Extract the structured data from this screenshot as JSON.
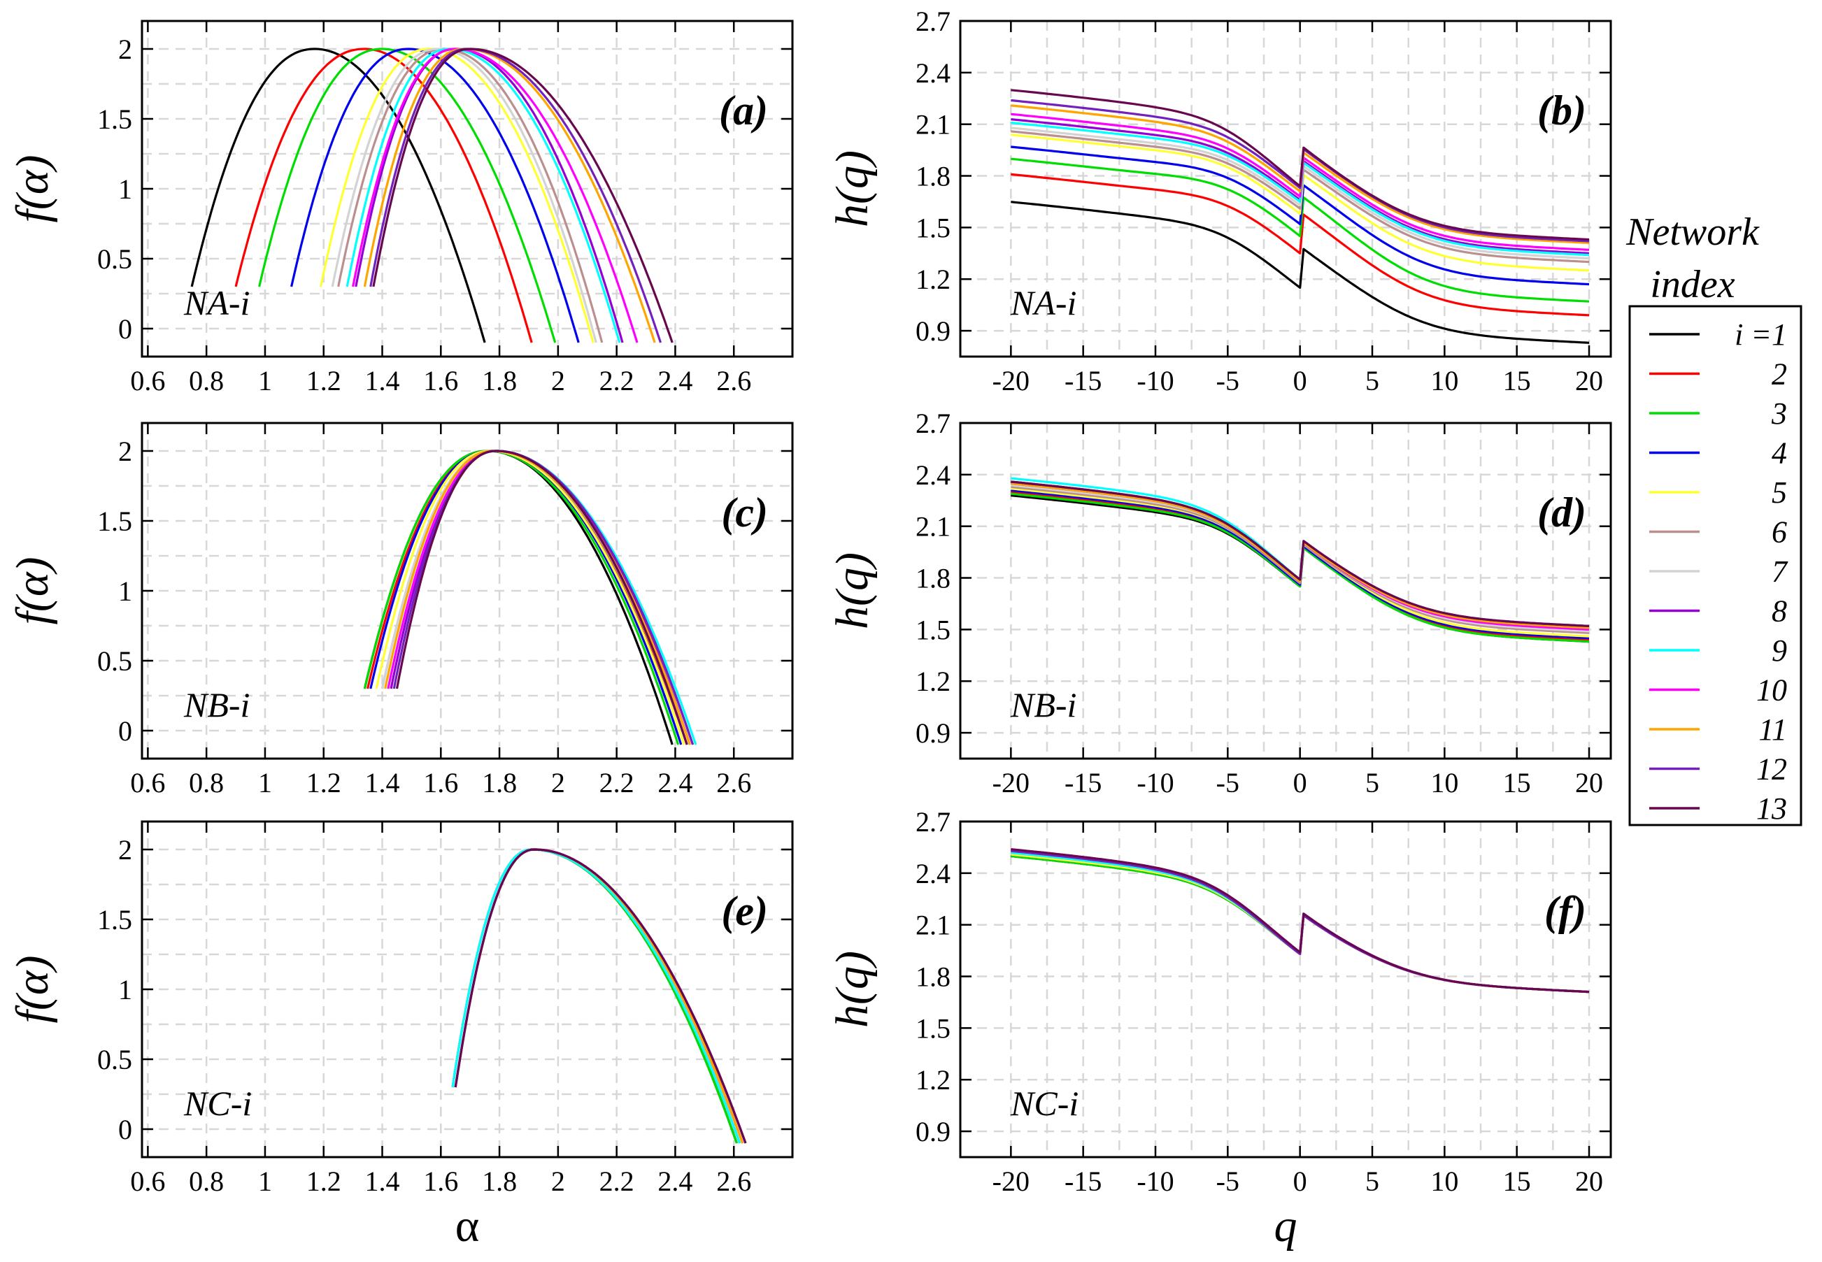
{
  "figure": {
    "legend": {
      "title_line1": "Network",
      "title_line2": "index",
      "first_label": "i =1"
    },
    "series_colors": [
      "#000000",
      "#ff0000",
      "#00dd00",
      "#0000ee",
      "#ffff33",
      "#bc8f8f",
      "#d3d3d3",
      "#9400d3",
      "#00ffff",
      "#ff00ff",
      "#ffa500",
      "#7221bc",
      "#67074e"
    ],
    "series_labels": [
      "i =1",
      "2",
      "3",
      "4",
      "5",
      "6",
      "7",
      "8",
      "9",
      "10",
      "11",
      "12",
      "13"
    ]
  },
  "chart_data": [
    {
      "id": "a",
      "type": "line",
      "panel_label": "(a)",
      "annotation": "NA-i",
      "xlabel": "",
      "ylabel": "f(α)",
      "xlim": [
        0.58,
        2.8
      ],
      "ylim": [
        -0.2,
        2.2
      ],
      "xticks": [
        "0.6",
        "0.8",
        "1",
        "1.2",
        "1.4",
        "1.6",
        "1.8",
        "2",
        "2.2",
        "2.4",
        "2.6"
      ],
      "yticks": [
        "0",
        "0.5",
        "1",
        "1.5",
        "2"
      ],
      "series": [
        {
          "name": "i =1",
          "values": {
            "amin": 0.75,
            "amax": 1.75,
            "apeak": 1.17
          }
        },
        {
          "name": "2",
          "values": {
            "amin": 0.9,
            "amax": 1.91,
            "apeak": 1.34
          }
        },
        {
          "name": "3",
          "values": {
            "amin": 0.98,
            "amax": 1.99,
            "apeak": 1.4
          }
        },
        {
          "name": "4",
          "values": {
            "amin": 1.09,
            "amax": 2.07,
            "apeak": 1.49
          }
        },
        {
          "name": "5",
          "values": {
            "amin": 1.19,
            "amax": 2.12,
            "apeak": 1.56
          }
        },
        {
          "name": "6",
          "values": {
            "amin": 1.25,
            "amax": 2.15,
            "apeak": 1.61
          }
        },
        {
          "name": "7",
          "values": {
            "amin": 1.23,
            "amax": 2.13,
            "apeak": 1.59
          }
        },
        {
          "name": "8",
          "values": {
            "amin": 1.31,
            "amax": 2.22,
            "apeak": 1.65
          }
        },
        {
          "name": "9",
          "values": {
            "amin": 1.28,
            "amax": 2.21,
            "apeak": 1.63
          }
        },
        {
          "name": "10",
          "values": {
            "amin": 1.3,
            "amax": 2.27,
            "apeak": 1.65
          }
        },
        {
          "name": "11",
          "values": {
            "amin": 1.34,
            "amax": 2.33,
            "apeak": 1.68
          }
        },
        {
          "name": "12",
          "values": {
            "amin": 1.36,
            "amax": 2.35,
            "apeak": 1.69
          }
        },
        {
          "name": "13",
          "values": {
            "amin": 1.37,
            "amax": 2.39,
            "apeak": 1.7
          }
        }
      ]
    },
    {
      "id": "b",
      "type": "line",
      "panel_label": "(b)",
      "annotation": "NA-i",
      "xlabel": "",
      "ylabel": "h(q)",
      "xlim": [
        -23.5,
        21.5
      ],
      "ylim": [
        0.75,
        2.7
      ],
      "xticks": [
        "-20",
        "-15",
        "-10",
        "-5",
        "0",
        "5",
        "10",
        "15",
        "20"
      ],
      "yticks": [
        "0.9",
        "1.2",
        "1.5",
        "1.8",
        "2.1",
        "2.4",
        "2.7"
      ],
      "series": [
        {
          "name": "i =1",
          "values": {
            "h_q_minus20": 1.65,
            "h_q0": 1.15,
            "h_q_plus20": 0.83
          }
        },
        {
          "name": "2",
          "values": {
            "h_q_minus20": 1.81,
            "h_q0": 1.35,
            "h_q_plus20": 0.99
          }
        },
        {
          "name": "3",
          "values": {
            "h_q_minus20": 1.9,
            "h_q0": 1.45,
            "h_q_plus20": 1.07
          }
        },
        {
          "name": "4",
          "values": {
            "h_q_minus20": 1.97,
            "h_q0": 1.52,
            "h_q_plus20": 1.17
          }
        },
        {
          "name": "5",
          "values": {
            "h_q_minus20": 2.04,
            "h_q0": 1.58,
            "h_q_plus20": 1.25
          }
        },
        {
          "name": "6",
          "values": {
            "h_q_minus20": 2.06,
            "h_q0": 1.61,
            "h_q_plus20": 1.3
          }
        },
        {
          "name": "7",
          "values": {
            "h_q_minus20": 2.08,
            "h_q0": 1.63,
            "h_q_plus20": 1.32
          }
        },
        {
          "name": "8",
          "values": {
            "h_q_minus20": 2.13,
            "h_q0": 1.66,
            "h_q_plus20": 1.35
          }
        },
        {
          "name": "9",
          "values": {
            "h_q_minus20": 2.11,
            "h_q0": 1.65,
            "h_q_plus20": 1.34
          }
        },
        {
          "name": "10",
          "values": {
            "h_q_minus20": 2.16,
            "h_q0": 1.68,
            "h_q_plus20": 1.37
          }
        },
        {
          "name": "11",
          "values": {
            "h_q_minus20": 2.21,
            "h_q0": 1.71,
            "h_q_plus20": 1.41
          }
        },
        {
          "name": "12",
          "values": {
            "h_q_minus20": 2.24,
            "h_q0": 1.73,
            "h_q_plus20": 1.42
          }
        },
        {
          "name": "13",
          "values": {
            "h_q_minus20": 2.3,
            "h_q0": 1.74,
            "h_q_plus20": 1.43
          }
        }
      ]
    },
    {
      "id": "c",
      "type": "line",
      "panel_label": "(c)",
      "annotation": "NB-i",
      "xlabel": "",
      "ylabel": "f(α)",
      "xlim": [
        0.58,
        2.8
      ],
      "ylim": [
        -0.2,
        2.2
      ],
      "xticks": [
        "0.6",
        "0.8",
        "1",
        "1.2",
        "1.4",
        "1.6",
        "1.8",
        "2",
        "2.2",
        "2.4",
        "2.6"
      ],
      "yticks": [
        "0",
        "0.5",
        "1",
        "1.5",
        "2"
      ],
      "series": [
        {
          "name": "i =1",
          "values": {
            "amin": 1.34,
            "amax": 2.39,
            "apeak": 1.76
          }
        },
        {
          "name": "2",
          "values": {
            "amin": 1.35,
            "amax": 2.44,
            "apeak": 1.77
          }
        },
        {
          "name": "3",
          "values": {
            "amin": 1.34,
            "amax": 2.41,
            "apeak": 1.76
          }
        },
        {
          "name": "4",
          "values": {
            "amin": 1.36,
            "amax": 2.42,
            "apeak": 1.77
          }
        },
        {
          "name": "5",
          "values": {
            "amin": 1.38,
            "amax": 2.43,
            "apeak": 1.77
          }
        },
        {
          "name": "6",
          "values": {
            "amin": 1.4,
            "amax": 2.44,
            "apeak": 1.78
          }
        },
        {
          "name": "7",
          "values": {
            "amin": 1.4,
            "amax": 2.45,
            "apeak": 1.78
          }
        },
        {
          "name": "8",
          "values": {
            "amin": 1.43,
            "amax": 2.45,
            "apeak": 1.79
          }
        },
        {
          "name": "9",
          "values": {
            "amin": 1.42,
            "amax": 2.47,
            "apeak": 1.79
          }
        },
        {
          "name": "10",
          "values": {
            "amin": 1.42,
            "amax": 2.46,
            "apeak": 1.79
          }
        },
        {
          "name": "11",
          "values": {
            "amin": 1.41,
            "amax": 2.45,
            "apeak": 1.78
          }
        },
        {
          "name": "12",
          "values": {
            "amin": 1.44,
            "amax": 2.46,
            "apeak": 1.79
          }
        },
        {
          "name": "13",
          "values": {
            "amin": 1.45,
            "amax": 2.44,
            "apeak": 1.79
          }
        }
      ]
    },
    {
      "id": "d",
      "type": "line",
      "panel_label": "(d)",
      "annotation": "NB-i",
      "xlabel": "",
      "ylabel": "h(q)",
      "xlim": [
        -23.5,
        21.5
      ],
      "ylim": [
        0.75,
        2.7
      ],
      "xticks": [
        "-20",
        "-15",
        "-10",
        "-5",
        "0",
        "5",
        "10",
        "15",
        "20"
      ],
      "yticks": [
        "0.9",
        "1.2",
        "1.5",
        "1.8",
        "2.1",
        "2.4",
        "2.7"
      ],
      "series": [
        {
          "name": "i =1",
          "values": {
            "h_q_minus20": 2.28,
            "h_q0": 1.75,
            "h_q_plus20": 1.43
          }
        },
        {
          "name": "2",
          "values": {
            "h_q_minus20": 2.3,
            "h_q0": 1.76,
            "h_q_plus20": 1.44
          }
        },
        {
          "name": "3",
          "values": {
            "h_q_minus20": 2.29,
            "h_q0": 1.75,
            "h_q_plus20": 1.43
          }
        },
        {
          "name": "4",
          "values": {
            "h_q_minus20": 2.31,
            "h_q0": 1.76,
            "h_q_plus20": 1.45
          }
        },
        {
          "name": "5",
          "values": {
            "h_q_minus20": 2.32,
            "h_q0": 1.77,
            "h_q_plus20": 1.46
          }
        },
        {
          "name": "6",
          "values": {
            "h_q_minus20": 2.33,
            "h_q0": 1.77,
            "h_q_plus20": 1.48
          }
        },
        {
          "name": "7",
          "values": {
            "h_q_minus20": 2.34,
            "h_q0": 1.78,
            "h_q_plus20": 1.49
          }
        },
        {
          "name": "8",
          "values": {
            "h_q_minus20": 2.35,
            "h_q0": 1.78,
            "h_q_plus20": 1.51
          }
        },
        {
          "name": "9",
          "values": {
            "h_q_minus20": 2.38,
            "h_q0": 1.79,
            "h_q_plus20": 1.5
          }
        },
        {
          "name": "10",
          "values": {
            "h_q_minus20": 2.36,
            "h_q0": 1.78,
            "h_q_plus20": 1.5
          }
        },
        {
          "name": "11",
          "values": {
            "h_q_minus20": 2.35,
            "h_q0": 1.78,
            "h_q_plus20": 1.51
          }
        },
        {
          "name": "12",
          "values": {
            "h_q_minus20": 2.36,
            "h_q0": 1.79,
            "h_q_plus20": 1.52
          }
        },
        {
          "name": "13",
          "values": {
            "h_q_minus20": 2.36,
            "h_q0": 1.79,
            "h_q_plus20": 1.52
          }
        }
      ]
    },
    {
      "id": "e",
      "type": "line",
      "panel_label": "(e)",
      "annotation": "NC-i",
      "xlabel": "α",
      "ylabel": "f(α)",
      "xlim": [
        0.58,
        2.8
      ],
      "ylim": [
        -0.2,
        2.2
      ],
      "xticks": [
        "0.6",
        "0.8",
        "1",
        "1.2",
        "1.4",
        "1.6",
        "1.8",
        "2",
        "2.2",
        "2.4",
        "2.6"
      ],
      "yticks": [
        "0",
        "0.5",
        "1",
        "1.5",
        "2"
      ],
      "series": [
        {
          "name": "i =1",
          "values": {
            "amin": 1.64,
            "amax": 2.61,
            "apeak": 1.91
          }
        },
        {
          "name": "2",
          "values": {
            "amin": 1.64,
            "amax": 2.62,
            "apeak": 1.91
          }
        },
        {
          "name": "3",
          "values": {
            "amin": 1.64,
            "amax": 2.61,
            "apeak": 1.91
          }
        },
        {
          "name": "4",
          "values": {
            "amin": 1.64,
            "amax": 2.62,
            "apeak": 1.91
          }
        },
        {
          "name": "5",
          "values": {
            "amin": 1.64,
            "amax": 2.62,
            "apeak": 1.91
          }
        },
        {
          "name": "6",
          "values": {
            "amin": 1.64,
            "amax": 2.63,
            "apeak": 1.91
          }
        },
        {
          "name": "7",
          "values": {
            "amin": 1.64,
            "amax": 2.63,
            "apeak": 1.91
          }
        },
        {
          "name": "8",
          "values": {
            "amin": 1.65,
            "amax": 2.63,
            "apeak": 1.92
          }
        },
        {
          "name": "9",
          "values": {
            "amin": 1.64,
            "amax": 2.62,
            "apeak": 1.91
          }
        },
        {
          "name": "10",
          "values": {
            "amin": 1.65,
            "amax": 2.64,
            "apeak": 1.92
          }
        },
        {
          "name": "11",
          "values": {
            "amin": 1.65,
            "amax": 2.63,
            "apeak": 1.92
          }
        },
        {
          "name": "12",
          "values": {
            "amin": 1.65,
            "amax": 2.64,
            "apeak": 1.92
          }
        },
        {
          "name": "13",
          "values": {
            "amin": 1.65,
            "amax": 2.64,
            "apeak": 1.92
          }
        }
      ]
    },
    {
      "id": "f",
      "type": "line",
      "panel_label": "(f)",
      "annotation": "NC-i",
      "xlabel": "q",
      "ylabel": "h(q)",
      "xlim": [
        -23.5,
        21.5
      ],
      "ylim": [
        0.75,
        2.7
      ],
      "xticks": [
        "-20",
        "-15",
        "-10",
        "-5",
        "0",
        "5",
        "10",
        "15",
        "20"
      ],
      "yticks": [
        "0.9",
        "1.2",
        "1.5",
        "1.8",
        "2.1",
        "2.4",
        "2.7"
      ],
      "series": [
        {
          "name": "i =1",
          "values": {
            "h_q_minus20": 2.5,
            "h_q0": 1.93,
            "h_q_plus20": 1.71
          }
        },
        {
          "name": "2",
          "values": {
            "h_q_minus20": 2.51,
            "h_q0": 1.93,
            "h_q_plus20": 1.71
          }
        },
        {
          "name": "3",
          "values": {
            "h_q_minus20": 2.5,
            "h_q0": 1.93,
            "h_q_plus20": 1.71
          }
        },
        {
          "name": "4",
          "values": {
            "h_q_minus20": 2.51,
            "h_q0": 1.93,
            "h_q_plus20": 1.71
          }
        },
        {
          "name": "5",
          "values": {
            "h_q_minus20": 2.51,
            "h_q0": 1.93,
            "h_q_plus20": 1.71
          }
        },
        {
          "name": "6",
          "values": {
            "h_q_minus20": 2.52,
            "h_q0": 1.93,
            "h_q_plus20": 1.71
          }
        },
        {
          "name": "7",
          "values": {
            "h_q_minus20": 2.52,
            "h_q0": 1.93,
            "h_q_plus20": 1.71
          }
        },
        {
          "name": "8",
          "values": {
            "h_q_minus20": 2.53,
            "h_q0": 1.93,
            "h_q_plus20": 1.71
          }
        },
        {
          "name": "9",
          "values": {
            "h_q_minus20": 2.52,
            "h_q0": 1.93,
            "h_q_plus20": 1.71
          }
        },
        {
          "name": "10",
          "values": {
            "h_q_minus20": 2.54,
            "h_q0": 1.94,
            "h_q_plus20": 1.71
          }
        },
        {
          "name": "11",
          "values": {
            "h_q_minus20": 2.53,
            "h_q0": 1.93,
            "h_q_plus20": 1.71
          }
        },
        {
          "name": "12",
          "values": {
            "h_q_minus20": 2.53,
            "h_q0": 1.93,
            "h_q_plus20": 1.71
          }
        },
        {
          "name": "13",
          "values": {
            "h_q_minus20": 2.54,
            "h_q0": 1.94,
            "h_q_plus20": 1.71
          }
        }
      ]
    }
  ]
}
